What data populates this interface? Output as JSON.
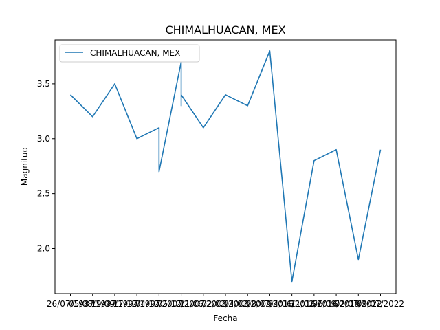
{
  "chart_data": {
    "type": "line",
    "title": "CHIMALHUACAN, MEX",
    "xlabel": "Fecha",
    "ylabel": "Magnitud",
    "x_tick_labels": [
      "26/07/1987",
      "05/08/1997",
      "19/09/1997",
      "17/12/1997",
      "04/12/2007",
      "05/12/2007",
      "11/06/2008",
      "02/02/2008",
      "04/02/2009",
      "08/07/2016",
      "04/06/2016",
      "11/02/2016",
      "06/09/2019",
      "02/07/2022",
      "09/07/2022"
    ],
    "y_ticks": [
      2.0,
      2.5,
      3.0,
      3.5
    ],
    "y_tick_labels": [
      "2.0",
      "2.5",
      "3.0",
      "3.5"
    ],
    "ylim": [
      1.59,
      3.9
    ],
    "series": [
      {
        "name": "CHIMALHUACAN, MEX",
        "color": "#1f77b4",
        "x": [
          0,
          1,
          2,
          3,
          4,
          4,
          5,
          5,
          5,
          6,
          7,
          8,
          9,
          10,
          11,
          12,
          13,
          14
        ],
        "y": [
          3.4,
          3.2,
          3.5,
          3.0,
          3.1,
          2.7,
          3.7,
          3.3,
          3.4,
          3.1,
          3.4,
          3.3,
          3.8,
          1.7,
          2.8,
          2.9,
          1.9,
          2.9
        ]
      }
    ],
    "legend_position": "top-left",
    "grid": false
  }
}
